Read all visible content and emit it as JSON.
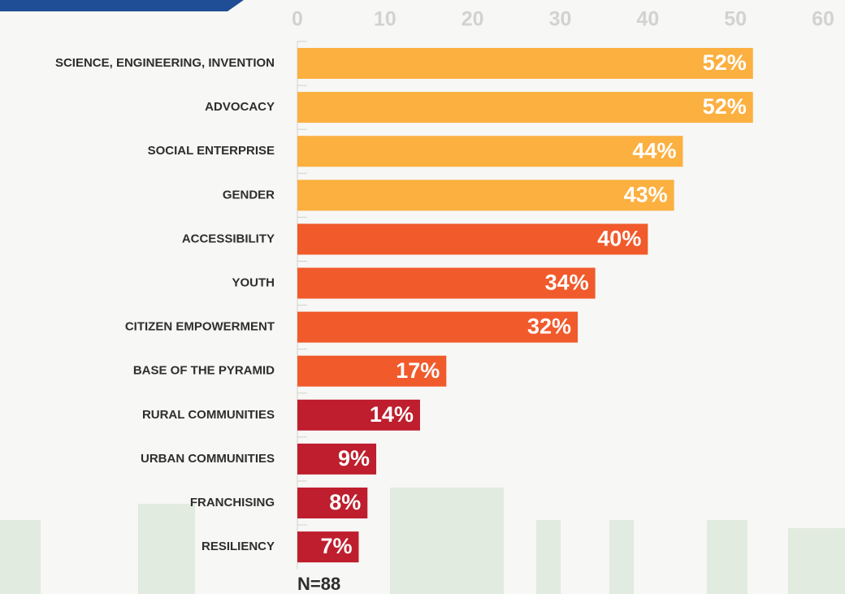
{
  "chart_data": {
    "type": "bar",
    "orientation": "horizontal",
    "categories": [
      "SCIENCE, ENGINEERING, INVENTION",
      "ADVOCACY",
      "SOCIAL ENTERPRISE",
      "GENDER",
      "ACCESSIBILITY",
      "YOUTH",
      "CITIZEN EMPOWERMENT",
      "BASE OF THE PYRAMID",
      "RURAL COMMUNITIES",
      "URBAN COMMUNITIES",
      "FRANCHISING",
      "RESILIENCY"
    ],
    "values": [
      52,
      52,
      44,
      43,
      40,
      34,
      32,
      17,
      14,
      9,
      8,
      7
    ],
    "value_labels": [
      "52%",
      "52%",
      "44%",
      "43%",
      "40%",
      "34%",
      "32%",
      "17%",
      "14%",
      "9%",
      "8%",
      "7%"
    ],
    "colors": [
      "#fbb040",
      "#fbb040",
      "#fbb040",
      "#fbb040",
      "#f15a2b",
      "#f15a2b",
      "#f15a2b",
      "#f15a2b",
      "#be1e2d",
      "#be1e2d",
      "#be1e2d",
      "#be1e2d"
    ],
    "xlim": [
      0,
      60
    ],
    "xticks": [
      0,
      10,
      20,
      30,
      40,
      50,
      60
    ],
    "annotation": "N=88"
  }
}
